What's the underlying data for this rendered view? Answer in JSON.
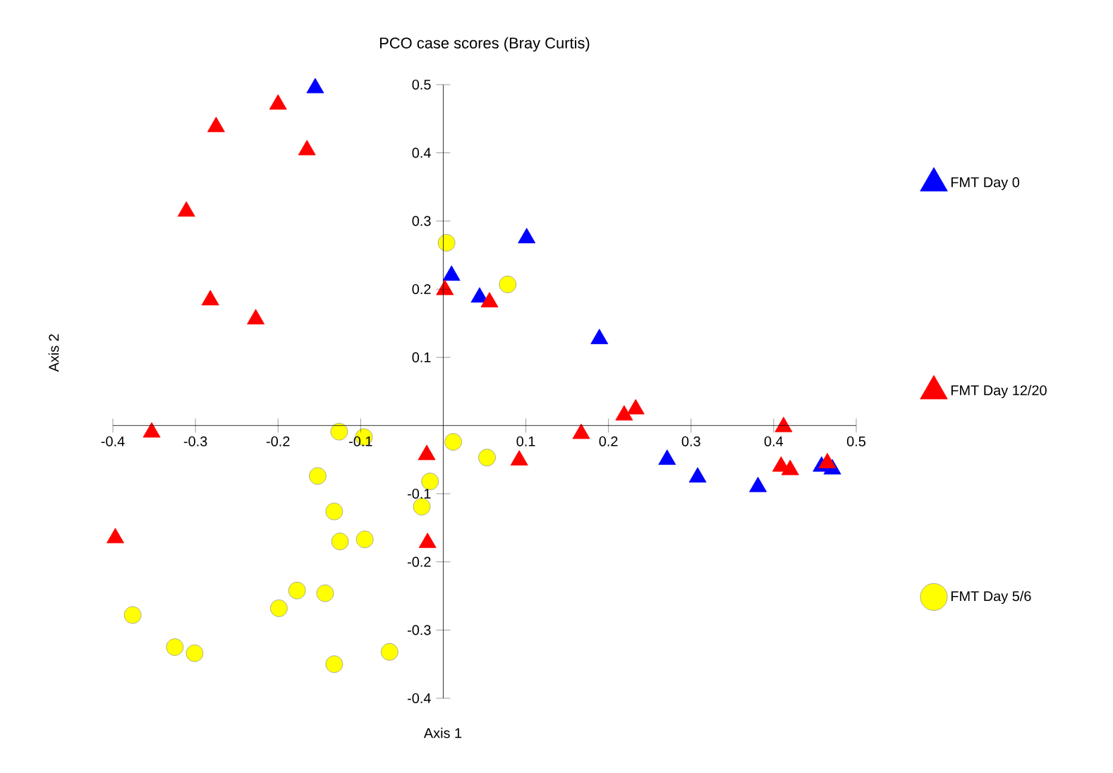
{
  "chart_data": {
    "type": "scatter",
    "title": "PCO case scores (Bray Curtis)",
    "xlabel": "Axis 1",
    "ylabel": "Axis 2",
    "xlim": [
      -0.4,
      0.5
    ],
    "ylim": [
      -0.4,
      0.5
    ],
    "xticks": [
      -0.4,
      -0.3,
      -0.2,
      -0.1,
      0.1,
      0.2,
      0.3,
      0.4,
      0.5
    ],
    "yticks": [
      -0.4,
      -0.3,
      -0.2,
      -0.1,
      0.1,
      0.2,
      0.3,
      0.4,
      0.5
    ],
    "grid": false,
    "legend": "right",
    "series": [
      {
        "name": "FMT Day 0",
        "color": "#0000ff",
        "marker": "triangle",
        "x": [
          -0.155,
          0.01,
          0.044,
          0.101,
          0.189,
          0.271,
          0.308,
          0.381,
          0.458,
          0.471
        ],
        "values": [
          0.495,
          0.22,
          0.188,
          0.275,
          0.127,
          -0.05,
          -0.076,
          -0.09,
          -0.06,
          -0.064
        ]
      },
      {
        "name": "FMT Day 12/20",
        "color": "#ff0000",
        "marker": "triangle",
        "x": [
          -0.2,
          -0.275,
          -0.165,
          -0.311,
          -0.282,
          -0.227,
          0.002,
          0.056,
          0.233,
          0.219,
          0.167,
          0.412,
          0.409,
          0.42,
          0.465,
          -0.02,
          0.092,
          -0.353,
          -0.397,
          -0.019
        ],
        "values": [
          0.471,
          0.438,
          0.404,
          0.314,
          0.184,
          0.156,
          0.199,
          0.181,
          0.024,
          0.015,
          -0.012,
          -0.002,
          -0.06,
          -0.065,
          -0.055,
          -0.043,
          -0.051,
          -0.01,
          -0.165,
          -0.172
        ]
      },
      {
        "name": "FMT Day 5/6",
        "color": "#ffff00",
        "marker": "circle",
        "x": [
          0.004,
          0.078,
          0.012,
          0.053,
          -0.016,
          -0.126,
          -0.096,
          -0.152,
          -0.026,
          -0.132,
          -0.125,
          -0.095,
          -0.177,
          -0.143,
          -0.199,
          -0.376,
          -0.325,
          -0.301,
          -0.132,
          -0.065
        ],
        "values": [
          0.268,
          0.207,
          -0.024,
          -0.047,
          -0.082,
          -0.009,
          -0.017,
          -0.074,
          -0.119,
          -0.126,
          -0.17,
          -0.167,
          -0.242,
          -0.246,
          -0.268,
          -0.278,
          -0.325,
          -0.334,
          -0.35,
          -0.332
        ]
      }
    ]
  }
}
